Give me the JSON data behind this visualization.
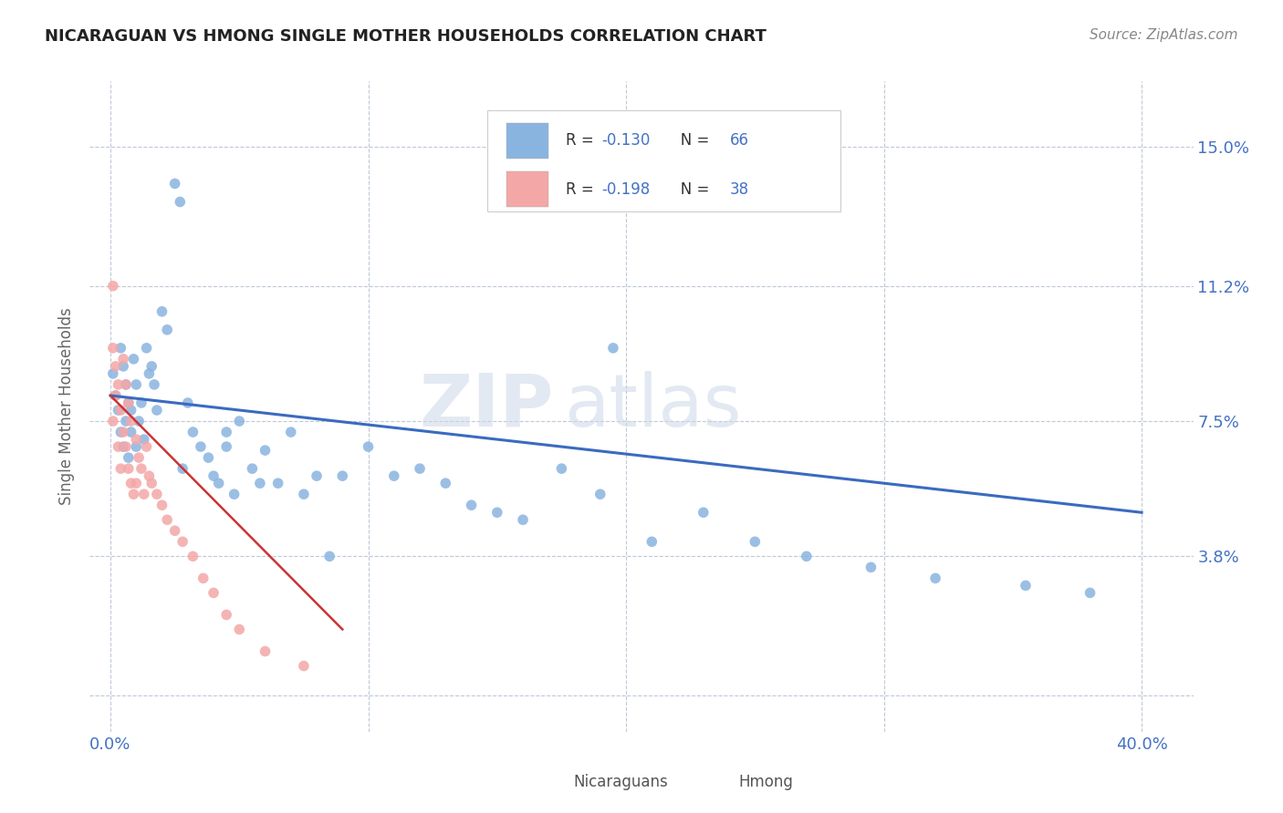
{
  "title": "NICARAGUAN VS HMONG SINGLE MOTHER HOUSEHOLDS CORRELATION CHART",
  "source": "Source: ZipAtlas.com",
  "ylabel": "Single Mother Households",
  "yticks": [
    0.0,
    0.038,
    0.075,
    0.112,
    0.15
  ],
  "ytick_labels": [
    "",
    "3.8%",
    "7.5%",
    "11.2%",
    "15.0%"
  ],
  "xlim": [
    -0.008,
    0.42
  ],
  "ylim": [
    -0.01,
    0.168
  ],
  "blue_color": "#8ab4e0",
  "pink_color": "#f4a7a7",
  "line_blue": "#3a6bbf",
  "line_pink": "#cc3333",
  "text_blue": "#4472c4",
  "watermark_zip": "ZIP",
  "watermark_atlas": "atlas",
  "background_color": "#ffffff",
  "grid_color": "#b8c4d4",
  "blue_x": [
    0.001,
    0.002,
    0.003,
    0.004,
    0.004,
    0.005,
    0.005,
    0.006,
    0.006,
    0.007,
    0.007,
    0.008,
    0.008,
    0.009,
    0.01,
    0.01,
    0.011,
    0.012,
    0.013,
    0.014,
    0.015,
    0.016,
    0.017,
    0.018,
    0.02,
    0.022,
    0.025,
    0.027,
    0.03,
    0.032,
    0.035,
    0.038,
    0.04,
    0.042,
    0.045,
    0.048,
    0.05,
    0.055,
    0.06,
    0.065,
    0.07,
    0.075,
    0.08,
    0.09,
    0.1,
    0.11,
    0.12,
    0.13,
    0.14,
    0.15,
    0.16,
    0.175,
    0.19,
    0.21,
    0.23,
    0.25,
    0.27,
    0.295,
    0.32,
    0.355,
    0.38,
    0.195,
    0.085,
    0.045,
    0.028,
    0.058
  ],
  "blue_y": [
    0.088,
    0.082,
    0.078,
    0.095,
    0.072,
    0.09,
    0.068,
    0.085,
    0.075,
    0.08,
    0.065,
    0.078,
    0.072,
    0.092,
    0.085,
    0.068,
    0.075,
    0.08,
    0.07,
    0.095,
    0.088,
    0.09,
    0.085,
    0.078,
    0.105,
    0.1,
    0.14,
    0.135,
    0.08,
    0.072,
    0.068,
    0.065,
    0.06,
    0.058,
    0.072,
    0.055,
    0.075,
    0.062,
    0.067,
    0.058,
    0.072,
    0.055,
    0.06,
    0.06,
    0.068,
    0.06,
    0.062,
    0.058,
    0.052,
    0.05,
    0.048,
    0.062,
    0.055,
    0.042,
    0.05,
    0.042,
    0.038,
    0.035,
    0.032,
    0.03,
    0.028,
    0.095,
    0.038,
    0.068,
    0.062,
    0.058
  ],
  "pink_x": [
    0.001,
    0.001,
    0.001,
    0.002,
    0.002,
    0.003,
    0.003,
    0.004,
    0.004,
    0.005,
    0.005,
    0.006,
    0.006,
    0.007,
    0.007,
    0.008,
    0.008,
    0.009,
    0.01,
    0.01,
    0.011,
    0.012,
    0.013,
    0.014,
    0.015,
    0.016,
    0.018,
    0.02,
    0.022,
    0.025,
    0.028,
    0.032,
    0.036,
    0.04,
    0.045,
    0.05,
    0.06,
    0.075
  ],
  "pink_y": [
    0.112,
    0.095,
    0.075,
    0.09,
    0.082,
    0.085,
    0.068,
    0.078,
    0.062,
    0.092,
    0.072,
    0.085,
    0.068,
    0.08,
    0.062,
    0.075,
    0.058,
    0.055,
    0.07,
    0.058,
    0.065,
    0.062,
    0.055,
    0.068,
    0.06,
    0.058,
    0.055,
    0.052,
    0.048,
    0.045,
    0.042,
    0.038,
    0.032,
    0.028,
    0.022,
    0.018,
    0.012,
    0.008
  ],
  "blue_line_x": [
    0.0,
    0.4
  ],
  "blue_line_y": [
    0.082,
    0.05
  ],
  "pink_line_x": [
    0.0,
    0.09
  ],
  "pink_line_y": [
    0.082,
    0.018
  ],
  "legend_items": [
    {
      "color": "#8ab4e0",
      "r_text": "R = ",
      "r_val": "-0.130",
      "n_text": "   N = ",
      "n_val": "66"
    },
    {
      "color": "#f4a7a7",
      "r_text": "R = ",
      "r_val": "-0.198",
      "n_text": "   N = ",
      "n_val": "38"
    }
  ],
  "bottom_legend": [
    {
      "color": "#8ab4e0",
      "label": "Nicaraguans"
    },
    {
      "color": "#f4a7a7",
      "label": "Hmong"
    }
  ]
}
